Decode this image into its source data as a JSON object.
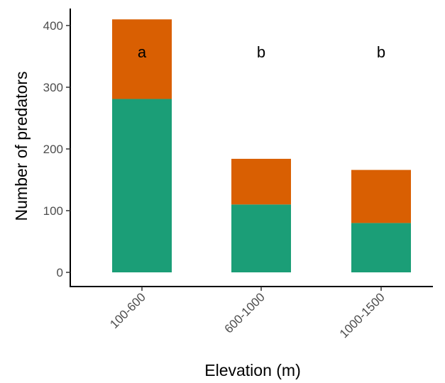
{
  "chart_data": {
    "type": "bar",
    "stacked": true,
    "categories": [
      "100-600",
      "600-1000",
      "1000-1500"
    ],
    "series": [
      {
        "values": [
          281,
          110,
          80
        ],
        "color": "#1b9e77"
      },
      {
        "values": [
          129,
          74,
          86
        ],
        "color": "#d95f02"
      }
    ],
    "significance_letters": [
      "a",
      "b",
      "b"
    ],
    "xlabel": "Elevation (m)",
    "ylabel": "Number of predators",
    "ylim": [
      0,
      420
    ],
    "yticks": [
      0,
      100,
      200,
      300,
      400
    ],
    "grid": false,
    "legend": "none"
  }
}
